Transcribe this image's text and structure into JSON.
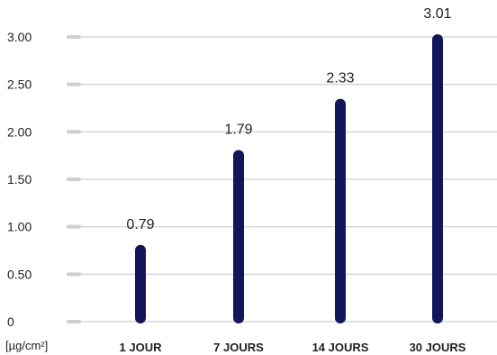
{
  "chart_data": {
    "type": "bar",
    "categories": [
      "1 JOUR",
      "7 JOURS",
      "14 JOURS",
      "30 JOURS"
    ],
    "values": [
      0.79,
      1.79,
      2.33,
      3.01
    ],
    "value_labels": [
      "0.79",
      "1.79",
      "2.33",
      "3.01"
    ],
    "ylim": [
      0,
      3
    ],
    "yticks": [
      0,
      0.5,
      1,
      1.5,
      2,
      2.5,
      3
    ],
    "ytick_labels": [
      "0",
      "0.50",
      "1.00",
      "1.50",
      "2.00",
      "2.50",
      "3.00"
    ],
    "ylabel": "[µg/cm²]",
    "grid": true,
    "colors": {
      "bar": "#13175a",
      "grid": "#d7d7d7",
      "tick_marker": "#cfcfcf",
      "text": "#1f1f1f"
    }
  }
}
